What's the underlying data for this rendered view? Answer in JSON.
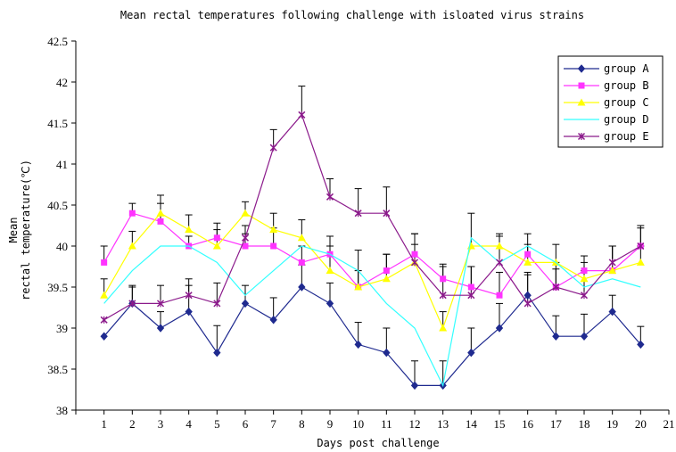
{
  "chart_data": {
    "type": "line",
    "title": "Mean rectal temperatures following challenge with isloated virus strains",
    "xlabel": "Days post challenge",
    "ylabel_lines": [
      "Mean",
      "rectal temperature(℃)"
    ],
    "xlim": [
      0,
      21
    ],
    "ylim": [
      38,
      42.5
    ],
    "x_ticks": [
      1,
      2,
      3,
      4,
      5,
      6,
      7,
      8,
      9,
      10,
      11,
      12,
      13,
      14,
      15,
      16,
      17,
      18,
      19,
      20,
      21
    ],
    "y_ticks": [
      "38",
      "38.5",
      "39",
      "39.5",
      "40",
      "40.5",
      "41",
      "41.5",
      "42",
      "42.5"
    ],
    "grid": false,
    "legend_position": "top-right",
    "x": [
      1,
      2,
      3,
      4,
      5,
      6,
      7,
      8,
      9,
      10,
      11,
      12,
      13,
      14,
      15,
      16,
      17,
      18,
      19,
      20
    ],
    "series": [
      {
        "name": "group A",
        "color": "#1f2a8f",
        "marker": "diamond",
        "values": [
          38.9,
          39.3,
          39.0,
          39.2,
          38.7,
          39.3,
          39.1,
          39.5,
          39.3,
          38.8,
          38.7,
          38.3,
          38.3,
          38.7,
          39.0,
          39.4,
          38.9,
          38.9,
          39.2,
          38.8
        ],
        "error": [
          0,
          0.22,
          0.2,
          0.32,
          0.33,
          0.22,
          0.27,
          0.27,
          0.25,
          0.27,
          0.3,
          0.3,
          0.3,
          0.3,
          0.3,
          0.28,
          0.25,
          0.27,
          0.2,
          0.22
        ]
      },
      {
        "name": "group B",
        "color": "#ff33ff",
        "marker": "square",
        "values": [
          39.8,
          40.4,
          40.3,
          40.0,
          40.1,
          40.0,
          40.0,
          39.8,
          39.9,
          39.5,
          39.7,
          39.9,
          39.6,
          39.5,
          39.4,
          39.9,
          39.5,
          39.7,
          39.7,
          40.0
        ],
        "error": [
          0.2,
          0.12,
          0.22,
          0.12,
          0.18,
          0.15,
          0.22,
          0.2,
          0.22,
          0.2,
          0.2,
          0.12,
          0.18,
          0.25,
          0.28,
          0.25,
          0.22,
          0.18,
          0.3,
          0.22
        ]
      },
      {
        "name": "group C",
        "color": "#ffff00",
        "marker": "triangle",
        "values": [
          39.4,
          40.0,
          40.4,
          40.2,
          40.0,
          40.4,
          40.2,
          40.1,
          39.7,
          39.5,
          39.6,
          39.8,
          39.0,
          40.0,
          40.0,
          39.8,
          39.8,
          39.6,
          39.7,
          39.8
        ],
        "error": [
          0.2,
          0.18,
          0.22,
          0.18,
          0.2,
          0.14,
          0.2,
          0.22,
          0.3,
          0.45,
          0.3,
          0.35,
          0.2,
          0.4,
          0.15,
          0.22,
          0.22,
          0.2,
          0.3,
          0.2
        ]
      },
      {
        "name": "group D",
        "color": "#33ffff",
        "marker": "none",
        "values": [
          39.3,
          39.7,
          40.0,
          40.0,
          39.8,
          39.4,
          39.7,
          40.0,
          39.9,
          39.7,
          39.3,
          39.0,
          38.3,
          40.1,
          39.8,
          40.0,
          39.8,
          39.5,
          39.6,
          39.5
        ],
        "error": [
          0,
          0,
          0,
          0,
          0,
          0,
          0,
          0,
          0,
          0,
          0,
          0,
          0,
          0,
          0,
          0,
          0,
          0,
          0,
          0
        ]
      },
      {
        "name": "group E",
        "color": "#8b1a8b",
        "marker": "star",
        "values": [
          39.1,
          39.3,
          39.3,
          39.4,
          39.3,
          40.1,
          41.2,
          41.6,
          40.6,
          40.4,
          40.4,
          39.8,
          39.4,
          39.4,
          39.8,
          39.3,
          39.5,
          39.4,
          39.8,
          40.0
        ],
        "error": [
          0,
          0.2,
          0.22,
          0.2,
          0.25,
          0.15,
          0.22,
          0.35,
          0.22,
          0.3,
          0.32,
          0.35,
          0.35,
          0.35,
          0.32,
          0.35,
          0.3,
          0.3,
          0.2,
          0.25
        ]
      }
    ]
  }
}
